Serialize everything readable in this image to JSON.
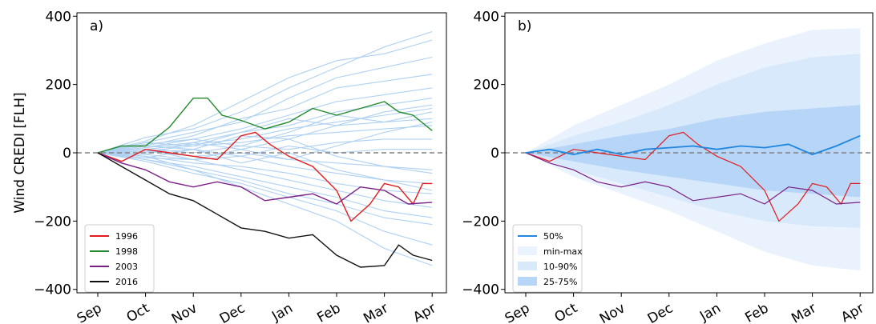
{
  "chart_data": [
    {
      "panel": "a",
      "type": "line",
      "panel_label": "a)",
      "ylabel": "Wind CREDI [FLH]",
      "xlabel": "",
      "ylim": [
        -410,
        410
      ],
      "yticks": [
        -400,
        -200,
        0,
        200,
        400
      ],
      "months": [
        "Sep",
        "Oct",
        "Nov",
        "Dec",
        "Jan",
        "Feb",
        "Mar",
        "Apr"
      ],
      "x_range_months": [
        -0.15,
        7.1
      ],
      "reference_line": 0,
      "grid": false,
      "background_ensemble": {
        "color": "#aed0f2",
        "note": "individual years (unlabelled, light blue)",
        "series": [
          {
            "months": [
              0,
              1,
              2,
              3,
              4,
              5,
              6,
              7
            ],
            "values": [
              0,
              45,
              70,
              120,
              190,
              250,
              310,
              355
            ]
          },
          {
            "months": [
              0,
              1,
              2,
              3,
              4,
              5,
              6,
              7
            ],
            "values": [
              0,
              35,
              80,
              150,
              220,
              270,
              290,
              330
            ]
          },
          {
            "months": [
              0,
              1,
              2,
              3,
              4,
              5,
              6,
              7
            ],
            "values": [
              0,
              30,
              60,
              90,
              160,
              220,
              250,
              280
            ]
          },
          {
            "months": [
              0,
              1,
              2,
              3,
              4,
              5,
              6,
              7
            ],
            "values": [
              0,
              20,
              50,
              100,
              130,
              190,
              210,
              230
            ]
          },
          {
            "months": [
              0,
              1,
              2,
              3,
              4,
              5,
              6,
              7
            ],
            "values": [
              0,
              25,
              40,
              70,
              110,
              150,
              170,
              190
            ]
          },
          {
            "months": [
              0,
              1,
              2,
              3,
              4,
              5,
              6,
              7
            ],
            "values": [
              0,
              15,
              30,
              60,
              80,
              120,
              140,
              160
            ]
          },
          {
            "months": [
              0,
              1,
              2,
              3,
              4,
              5,
              6,
              7
            ],
            "values": [
              0,
              10,
              25,
              40,
              70,
              90,
              110,
              130
            ]
          },
          {
            "months": [
              0,
              1,
              2,
              3,
              4,
              5,
              6,
              7
            ],
            "values": [
              0,
              20,
              10,
              50,
              40,
              80,
              90,
              100
            ]
          },
          {
            "months": [
              0,
              1,
              2,
              3,
              4,
              5,
              6,
              7
            ],
            "values": [
              0,
              5,
              20,
              30,
              50,
              60,
              70,
              80
            ]
          },
          {
            "months": [
              0,
              1,
              2,
              3,
              4,
              5,
              6,
              7
            ],
            "values": [
              0,
              10,
              0,
              20,
              10,
              30,
              40,
              40
            ]
          },
          {
            "months": [
              0,
              1,
              2,
              3,
              4,
              5,
              6,
              7
            ],
            "values": [
              0,
              0,
              10,
              -10,
              20,
              0,
              10,
              10
            ]
          },
          {
            "months": [
              0,
              1,
              2,
              3,
              4,
              5,
              6,
              7
            ],
            "values": [
              0,
              5,
              -10,
              0,
              -20,
              -30,
              -40,
              -50
            ]
          },
          {
            "months": [
              0,
              1,
              2,
              3,
              4,
              5,
              6,
              7
            ],
            "values": [
              0,
              -5,
              -20,
              -10,
              -40,
              -60,
              -80,
              -90
            ]
          },
          {
            "months": [
              0,
              1,
              2,
              3,
              4,
              5,
              6,
              7
            ],
            "values": [
              0,
              -10,
              -30,
              -40,
              -60,
              -90,
              -110,
              -120
            ]
          },
          {
            "months": [
              0,
              1,
              2,
              3,
              4,
              5,
              6,
              7
            ],
            "values": [
              0,
              -15,
              -20,
              -50,
              -80,
              -110,
              -140,
              -160
            ]
          },
          {
            "months": [
              0,
              1,
              2,
              3,
              4,
              5,
              6,
              7
            ],
            "values": [
              0,
              -20,
              -40,
              -70,
              -100,
              -130,
              -170,
              -190
            ]
          },
          {
            "months": [
              0,
              1,
              2,
              3,
              4,
              5,
              6,
              7
            ],
            "values": [
              0,
              -10,
              -50,
              -80,
              -120,
              -150,
              -190,
              -210
            ]
          },
          {
            "months": [
              0,
              1,
              2,
              3,
              4,
              5,
              6,
              7
            ],
            "values": [
              0,
              -25,
              -60,
              -90,
              -130,
              -170,
              -230,
              -270
            ]
          },
          {
            "months": [
              0,
              1,
              2,
              3,
              4,
              5,
              6,
              7
            ],
            "values": [
              0,
              -20,
              -50,
              -100,
              -150,
              -200,
              -280,
              -330
            ]
          },
          {
            "months": [
              0,
              1,
              2,
              3,
              4,
              5,
              6,
              7
            ],
            "values": [
              0,
              30,
              20,
              60,
              100,
              80,
              120,
              140
            ]
          },
          {
            "months": [
              0,
              1,
              2,
              3,
              4,
              5,
              6,
              7
            ],
            "values": [
              0,
              15,
              40,
              20,
              60,
              110,
              90,
              120
            ]
          },
          {
            "months": [
              0,
              1,
              2,
              3,
              4,
              5,
              6,
              7
            ],
            "values": [
              0,
              -5,
              30,
              10,
              -20,
              20,
              60,
              90
            ]
          },
          {
            "months": [
              0,
              1,
              2,
              3,
              4,
              5,
              6,
              7
            ],
            "values": [
              0,
              10,
              -20,
              10,
              40,
              -10,
              -40,
              -60
            ]
          },
          {
            "months": [
              0,
              1,
              2,
              3,
              4,
              5,
              6,
              7
            ],
            "values": [
              0,
              -15,
              10,
              -30,
              0,
              -50,
              -80,
              -110
            ]
          }
        ]
      },
      "legend": {
        "placement": "lower left"
      },
      "series": [
        {
          "name": "1996",
          "color": "#e31a1c",
          "months": [
            0,
            0.5,
            1,
            1.5,
            2,
            2.5,
            3,
            3.3,
            3.6,
            4,
            4.5,
            5,
            5.3,
            5.7,
            6,
            6.3,
            6.6,
            6.8,
            7
          ],
          "values": [
            0,
            -25,
            10,
            0,
            -10,
            -20,
            50,
            60,
            25,
            -10,
            -40,
            -110,
            -200,
            -150,
            -90,
            -100,
            -150,
            -90,
            -90
          ]
        },
        {
          "name": "1998",
          "color": "#238b2d",
          "months": [
            0,
            0.5,
            1,
            1.5,
            2,
            2.3,
            2.6,
            3,
            3.5,
            4,
            4.5,
            5,
            5.5,
            6,
            6.3,
            6.6,
            7
          ],
          "values": [
            0,
            20,
            20,
            75,
            160,
            160,
            110,
            95,
            70,
            90,
            130,
            110,
            130,
            150,
            120,
            110,
            65
          ]
        },
        {
          "name": "2003",
          "color": "#7b1f86",
          "months": [
            0,
            0.5,
            1,
            1.5,
            2,
            2.5,
            3,
            3.5,
            4,
            4.5,
            5,
            5.5,
            6,
            6.5,
            7
          ],
          "values": [
            0,
            -30,
            -50,
            -85,
            -100,
            -85,
            -100,
            -140,
            -130,
            -120,
            -150,
            -100,
            -110,
            -150,
            -145
          ]
        },
        {
          "name": "2016",
          "color": "#111111",
          "months": [
            0,
            0.5,
            1,
            1.5,
            2,
            2.5,
            3,
            3.5,
            4,
            4.5,
            5,
            5.5,
            6,
            6.3,
            6.6,
            7
          ],
          "values": [
            0,
            -40,
            -80,
            -120,
            -140,
            -180,
            -220,
            -230,
            -250,
            -240,
            -300,
            -335,
            -330,
            -270,
            -300,
            -315
          ]
        }
      ]
    },
    {
      "panel": "b",
      "type": "area",
      "panel_label": "b)",
      "ylabel": "",
      "xlabel": "",
      "ylim": [
        -410,
        410
      ],
      "yticks": [
        -400,
        -200,
        0,
        200,
        400
      ],
      "months": [
        "Sep",
        "Oct",
        "Nov",
        "Dec",
        "Jan",
        "Feb",
        "Mar",
        "Apr"
      ],
      "x_range_months": [
        -0.15,
        7.1
      ],
      "reference_line": 0,
      "grid": false,
      "bands": [
        {
          "name": "min-max",
          "color": "#eaf3fd",
          "months": [
            0,
            1,
            2,
            3,
            4,
            5,
            6,
            7
          ],
          "lower": [
            0,
            -70,
            -120,
            -170,
            -230,
            -290,
            -330,
            -345
          ],
          "upper": [
            0,
            80,
            140,
            200,
            270,
            320,
            360,
            365
          ]
        },
        {
          "name": "10-90%",
          "color": "#d8e9fb",
          "months": [
            0,
            1,
            2,
            3,
            4,
            5,
            6,
            7
          ],
          "lower": [
            0,
            -50,
            -90,
            -130,
            -170,
            -200,
            -215,
            -220
          ],
          "upper": [
            0,
            50,
            90,
            140,
            200,
            250,
            280,
            290
          ]
        },
        {
          "name": "25-75%",
          "color": "#b6d5f7",
          "months": [
            0,
            1,
            2,
            3,
            4,
            5,
            6,
            7
          ],
          "lower": [
            0,
            -25,
            -50,
            -70,
            -90,
            -110,
            -120,
            -130
          ],
          "upper": [
            0,
            25,
            50,
            70,
            100,
            120,
            130,
            140
          ]
        }
      ],
      "median": {
        "name": "50%",
        "color": "#1f87e0",
        "months": [
          0,
          0.5,
          1,
          1.5,
          2,
          2.5,
          3,
          3.5,
          4,
          4.5,
          5,
          5.5,
          6,
          6.5,
          7
        ],
        "values": [
          0,
          10,
          -5,
          10,
          -5,
          10,
          15,
          20,
          10,
          20,
          15,
          25,
          -5,
          20,
          50
        ]
      },
      "overlay_series": [
        {
          "name": "1996",
          "color": "#e31a1c",
          "months": [
            0,
            0.5,
            1,
            1.5,
            2,
            2.5,
            3,
            3.3,
            3.6,
            4,
            4.5,
            5,
            5.3,
            5.7,
            6,
            6.3,
            6.6,
            6.8,
            7
          ],
          "values": [
            0,
            -25,
            10,
            0,
            -10,
            -20,
            50,
            60,
            25,
            -10,
            -40,
            -110,
            -200,
            -150,
            -90,
            -100,
            -150,
            -90,
            -90
          ]
        },
        {
          "name": "2003",
          "color": "#7b1f86",
          "months": [
            0,
            0.5,
            1,
            1.5,
            2,
            2.5,
            3,
            3.5,
            4,
            4.5,
            5,
            5.5,
            6,
            6.5,
            7
          ],
          "values": [
            0,
            -30,
            -50,
            -85,
            -100,
            -85,
            -100,
            -140,
            -130,
            -120,
            -150,
            -100,
            -110,
            -150,
            -145
          ]
        }
      ],
      "legend": {
        "placement": "lower left",
        "entries": [
          "50%",
          "min-max",
          "10-90%",
          "25-75%"
        ]
      }
    }
  ]
}
